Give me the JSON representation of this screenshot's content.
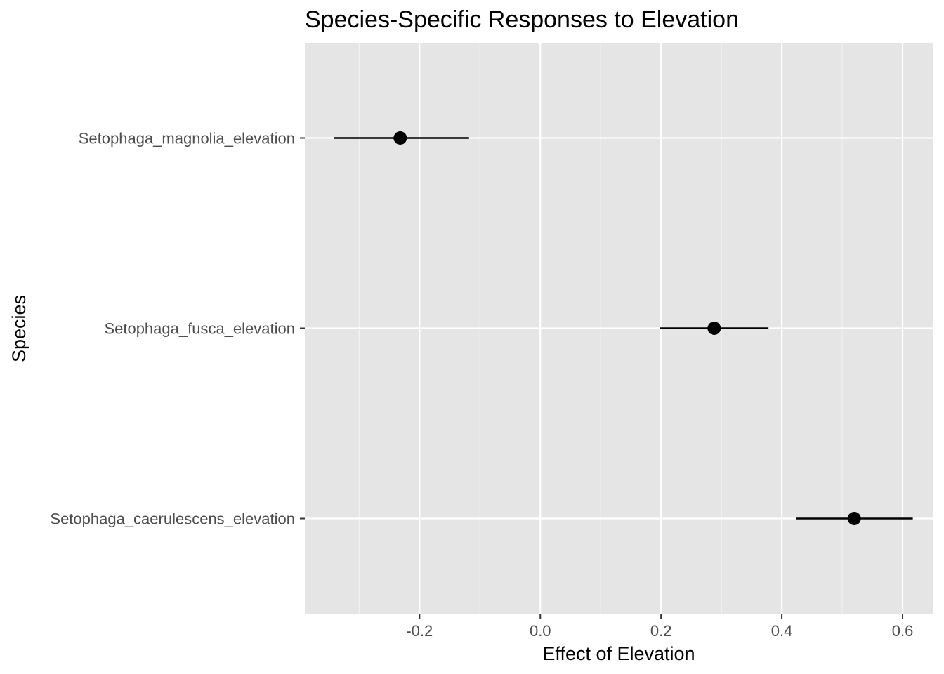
{
  "chart_data": {
    "type": "scatter",
    "subtype": "point-range",
    "title": "Species-Specific Responses to Elevation",
    "xlabel": "Effect of Elevation",
    "ylabel": "Species",
    "xlim": [
      -0.39,
      0.65
    ],
    "x_ticks": [
      {
        "value": -0.2,
        "label": "-0.2"
      },
      {
        "value": 0.0,
        "label": "0.0"
      },
      {
        "value": 0.2,
        "label": "0.2"
      },
      {
        "value": 0.4,
        "label": "0.4"
      },
      {
        "value": 0.6,
        "label": "0.6"
      }
    ],
    "x_minor_ticks": [
      -0.3,
      -0.1,
      0.1,
      0.3,
      0.5
    ],
    "categories": [
      "Setophaga_magnolia_elevation",
      "Setophaga_fusca_elevation",
      "Setophaga_caerulescens_elevation"
    ],
    "points": [
      {
        "species": "Setophaga_magnolia_elevation",
        "estimate": -0.232,
        "lower": -0.342,
        "upper": -0.118
      },
      {
        "species": "Setophaga_fusca_elevation",
        "estimate": 0.288,
        "lower": 0.198,
        "upper": 0.378
      },
      {
        "species": "Setophaga_caerulescens_elevation",
        "estimate": 0.52,
        "lower": 0.424,
        "upper": 0.617
      }
    ],
    "grid": true,
    "legend": "none",
    "colors": {
      "panel_background": "#e5e5e5",
      "grid_major": "#ffffff",
      "grid_minor": "#f2f2f2",
      "point": "#000000",
      "tick_label": "#4d4d4d",
      "tick_mark": "#333333"
    }
  }
}
